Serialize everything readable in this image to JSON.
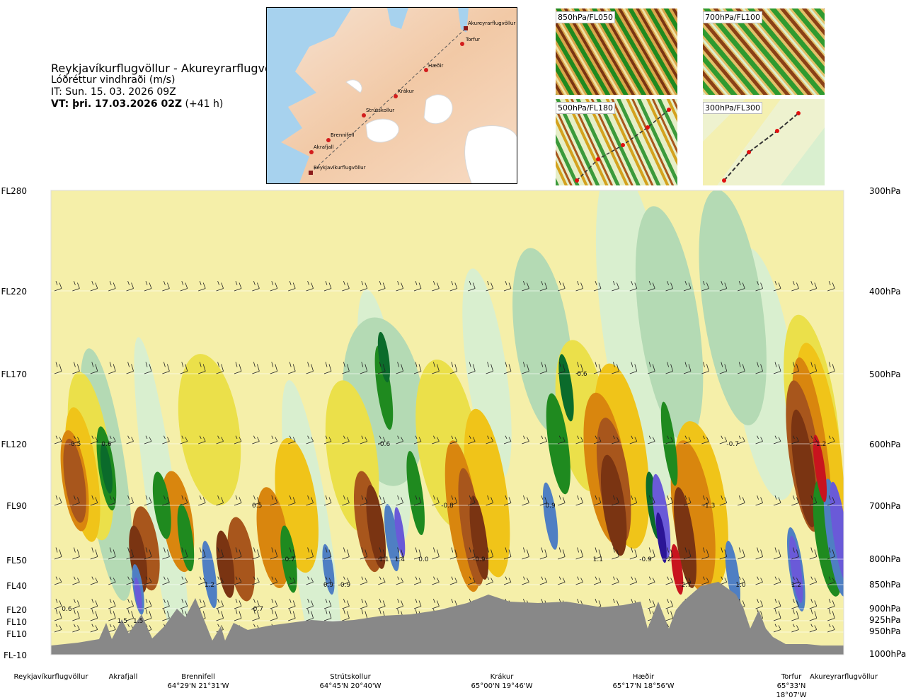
{
  "header": {
    "route": "Reykjavíkurflugvöllur - Akureyrarflugvöllur",
    "field": "Lóðréttur vindhraði (m/s)",
    "issue_time": "IT: Sun. 15. 03. 2026 09Z",
    "valid_time": "VT: þri. 17.03.2026 02Z",
    "lead": "(+41 h)"
  },
  "map": {
    "points": [
      {
        "name": "Akureyrarflugvöllur"
      },
      {
        "name": "Torfur"
      },
      {
        "name": "Hæðir"
      },
      {
        "name": "Krákur"
      },
      {
        "name": "Strútskollur"
      },
      {
        "name": "Brennifell"
      },
      {
        "name": "Akrafjall"
      },
      {
        "name": "Reykjavíkurflugvöllur"
      }
    ]
  },
  "mini_maps": [
    {
      "label": "850hPa/FL050"
    },
    {
      "label": "700hPa/FL100"
    },
    {
      "label": "500hPa/FL180"
    },
    {
      "label": "300hPa/FL300"
    }
  ],
  "colors": {
    "dark_brown": "#7a3412",
    "brown": "#a8561c",
    "orange": "#d9860e",
    "gold": "#f0c419",
    "yellow": "#ebe04a",
    "pale_yellow": "#f5efa9",
    "pale_green": "#d9efcf",
    "light_green": "#b4dab4",
    "mid_green": "#5ab15a",
    "green": "#1f8a1f",
    "dark_green": "#0b6b2b",
    "steel_blue": "#4f7fc3",
    "violet": "#6a5ad8",
    "indigo": "#2b1596",
    "red": "#c8141e",
    "terrain": "#888888"
  },
  "chart_data": {
    "type": "heatmap",
    "title": "Lóðréttur vindhraði (m/s)",
    "x_labels": [
      {
        "name": "Reykjavíkurflugvöllur",
        "coord": ""
      },
      {
        "name": "Akrafjall",
        "coord": ""
      },
      {
        "name": "Brennifell",
        "coord": "64°29'N 21°31'W"
      },
      {
        "name": "Strútskollur",
        "coord": "64°45'N 20°40'W"
      },
      {
        "name": "Krákur",
        "coord": "65°00'N 19°46'W"
      },
      {
        "name": "Hæðir",
        "coord": "65°17'N 18°56'W"
      },
      {
        "name": "Torfur",
        "coord": "65°33'N 18°07'W"
      },
      {
        "name": "Akureyrarflugvöllur",
        "coord": ""
      }
    ],
    "y_left_labels": [
      "FL280",
      "FL220",
      "FL170",
      "FL120",
      "FL90",
      "FL50",
      "FL40",
      "FL20",
      "FL10",
      "FL10",
      "FL-10"
    ],
    "y_right_labels": [
      "300hPa",
      "400hPa",
      "500hPa",
      "600hPa",
      "700hPa",
      "800hPa",
      "850hPa",
      "900hPa",
      "925hPa",
      "950hPa",
      "1000hPa"
    ],
    "pressure_levels_hpa": [
      300,
      400,
      500,
      600,
      700,
      800,
      850,
      900,
      925,
      950,
      1000
    ],
    "contour_labels": [
      {
        "text": "-0.5",
        "pos": 0.03,
        "level": 600
      },
      {
        "text": "0.6",
        "pos": 0.07,
        "level": 600
      },
      {
        "text": "-0.6",
        "pos": 0.42,
        "level": 600
      },
      {
        "text": "0.6",
        "pos": 0.67,
        "level": 500
      },
      {
        "text": "-0.7",
        "pos": 0.86,
        "level": 600
      },
      {
        "text": "-1.2",
        "pos": 0.97,
        "level": 600
      },
      {
        "text": "0.5",
        "pos": 0.26,
        "level": 700
      },
      {
        "text": "-0.8",
        "pos": 0.5,
        "level": 700
      },
      {
        "text": "0.9",
        "pos": 0.63,
        "level": 700
      },
      {
        "text": "-1.3",
        "pos": 0.83,
        "level": 700
      },
      {
        "text": "-0.7",
        "pos": 0.3,
        "level": 800
      },
      {
        "text": "1.1",
        "pos": 0.42,
        "level": 800
      },
      {
        "text": "1.4",
        "pos": 0.44,
        "level": 800
      },
      {
        "text": "0.0",
        "pos": 0.47,
        "level": 800
      },
      {
        "text": "-0.9",
        "pos": 0.54,
        "level": 800
      },
      {
        "text": "1.1",
        "pos": 0.69,
        "level": 800
      },
      {
        "text": "-0.9",
        "pos": 0.75,
        "level": 800
      },
      {
        "text": "2",
        "pos": 0.78,
        "level": 800
      },
      {
        "text": "1.2",
        "pos": 0.2,
        "level": 850
      },
      {
        "text": "0.9",
        "pos": 0.35,
        "level": 850
      },
      {
        "text": "-0.9",
        "pos": 0.37,
        "level": 850
      },
      {
        "text": "-2.7",
        "pos": 0.8,
        "level": 850
      },
      {
        "text": "1.0",
        "pos": 0.87,
        "level": 850
      },
      {
        "text": "1.2",
        "pos": 0.94,
        "level": 850
      },
      {
        "text": "0.6",
        "pos": 0.02,
        "level": 900
      },
      {
        "text": "-0.7",
        "pos": 0.26,
        "level": 900
      },
      {
        "text": "1.5",
        "pos": 0.09,
        "level": 925
      },
      {
        "text": "1.5",
        "pos": 0.11,
        "level": 925
      }
    ]
  }
}
